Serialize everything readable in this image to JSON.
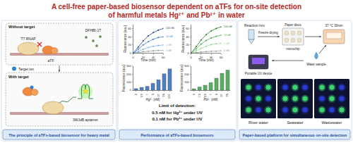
{
  "title": {
    "lines": [
      "A cell-free paper-based biosensor dependent on aTFs for on-site detection",
      "of harmful metals Hg²⁺ and Pb²⁺ in water"
    ]
  },
  "principle": {
    "caption": "The principle of aTFs-based biosensor for heavy metal",
    "without_target": "Without target",
    "with_target": "With target",
    "polymerase": "T7 RNAP",
    "atf": "aTF",
    "fluorophore": "DFHBI-1T",
    "aptamer": "3WJdB aptamer",
    "target": "Target ion"
  },
  "performance": {
    "caption": "Performance of aTFs-based biosensors",
    "lod": {
      "heading": "Limit of detection:",
      "lines": [
        "0.5 nM for Hg²⁺ under UV",
        "0.1 nM for Pb²⁺ under UV"
      ]
    }
  },
  "platform": {
    "caption": "Paper-based platform for simultaneous on-site detection",
    "reaction_mix": "Reaction mix",
    "freeze_drying": "Freeze-drying",
    "paper_discs": "Paper discs",
    "microchip": "microchip",
    "incubation": "37 °C 30min",
    "water_sample": "Water sample",
    "uv_device": "Portable UV device",
    "samples": [
      "River water",
      "Seawater",
      "Wastewater"
    ]
  },
  "chart_data": [
    {
      "type": "line",
      "x_label": "Time (min)",
      "y_label": "Fluorescence (a.u.)",
      "x": [
        0,
        10,
        20,
        30,
        40,
        50,
        60
      ],
      "series": [
        {
          "name": "0 nM",
          "color": "#9e9e9e",
          "values": [
            0,
            2,
            4,
            5,
            6,
            7,
            7
          ]
        },
        {
          "name": "1 nM",
          "color": "#7fb3e6",
          "values": [
            0,
            5,
            10,
            14,
            17,
            19,
            20
          ]
        },
        {
          "name": "10 nM",
          "color": "#3f7fcf",
          "values": [
            0,
            10,
            20,
            28,
            34,
            38,
            40
          ]
        },
        {
          "name": "100 nM",
          "color": "#1f3f8f",
          "values": [
            0,
            15,
            30,
            42,
            50,
            56,
            60
          ]
        }
      ],
      "xlim": [
        0,
        60
      ],
      "xticks": [
        0,
        20,
        40,
        60
      ],
      "ylim": [
        0,
        70
      ],
      "yticks": [
        0,
        20,
        40,
        60
      ],
      "grid": false,
      "marker": "circle"
    },
    {
      "type": "line",
      "x_label": "Time (min)",
      "y_label": "Fluorescence (a.u.)",
      "x": [
        0,
        10,
        20,
        30,
        40,
        50,
        60
      ],
      "series": [
        {
          "name": "0 nM",
          "color": "#9e9e9e",
          "values": [
            0,
            2,
            3,
            4,
            5,
            5,
            6
          ]
        },
        {
          "name": "1 nM",
          "color": "#9ed69a",
          "values": [
            0,
            6,
            12,
            17,
            21,
            23,
            24
          ]
        },
        {
          "name": "10 nM",
          "color": "#4cae4c",
          "values": [
            0,
            11,
            22,
            31,
            37,
            41,
            44
          ]
        },
        {
          "name": "100 nM",
          "color": "#1f7a1f",
          "values": [
            0,
            16,
            32,
            45,
            54,
            60,
            64
          ]
        }
      ],
      "xlim": [
        0,
        60
      ],
      "xticks": [
        0,
        20,
        40,
        60
      ],
      "ylim": [
        0,
        70
      ],
      "yticks": [
        0,
        20,
        40,
        60
      ],
      "grid": false,
      "marker": "circle"
    },
    {
      "type": "bar",
      "x_label": "Hg²⁺ (nM)",
      "y_label": "Fluorescence (a.u.)",
      "categories": [
        "0",
        "0.5",
        "1",
        "5",
        "10",
        "50",
        "100"
      ],
      "values": [
        20,
        35,
        48,
        85,
        130,
        205,
        265
      ],
      "color": "#4f7fc4",
      "ylim": [
        0,
        300
      ],
      "yticks": [
        0,
        100,
        200,
        300
      ],
      "grid": false
    },
    {
      "type": "bar",
      "x_label": "Pb²⁺ (nM)",
      "y_label": "Fluorescence (a.u.)",
      "categories": [
        "0",
        "0.1",
        "0.5",
        "1",
        "5",
        "10",
        "50"
      ],
      "values": [
        18,
        40,
        62,
        95,
        150,
        210,
        250
      ],
      "color": "#5aae62",
      "ylim": [
        0,
        300
      ],
      "yticks": [
        0,
        100,
        200,
        300
      ],
      "grid": false
    }
  ]
}
